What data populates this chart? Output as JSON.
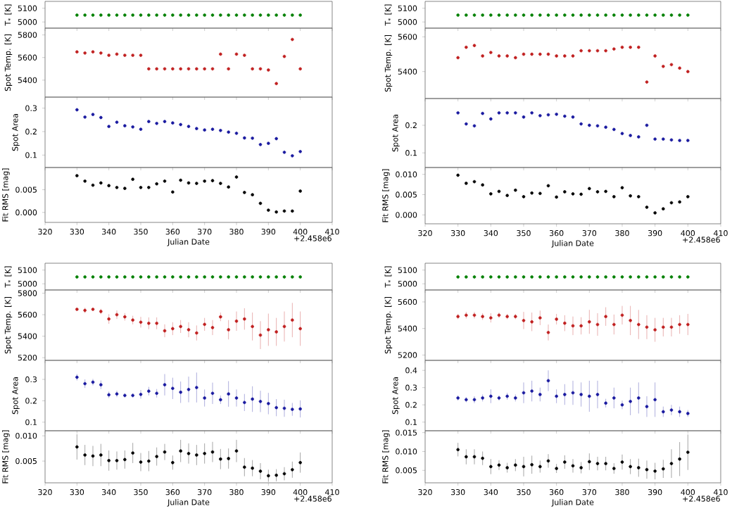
{
  "chart_data": [
    {
      "type": "scatter",
      "ylabel": "T$_{*}$ [K]",
      "color": "#008000",
      "marker": "circle",
      "tick_labels": "y",
      "xlim": [
        320,
        410
      ],
      "xticks": [
        320,
        330,
        340,
        350,
        360,
        370,
        380,
        390,
        400,
        410
      ],
      "ylim": [
        4955,
        5150
      ],
      "yticks": [
        5000,
        5100
      ],
      "x": [
        330,
        332.5,
        335,
        337.5,
        340,
        342.5,
        345,
        347.5,
        350,
        352.5,
        355,
        357.5,
        360,
        362.5,
        365,
        367.5,
        370,
        372.5,
        375,
        377.5,
        380,
        382.5,
        385,
        387.5,
        390,
        392.5,
        395,
        397.5,
        400
      ],
      "values": [
        5050,
        5050,
        5050,
        5050,
        5050,
        5050,
        5050,
        5050,
        5050,
        5050,
        5050,
        5050,
        5050,
        5050,
        5050,
        5050,
        5050,
        5050,
        5050,
        5050,
        5050,
        5050,
        5050,
        5050,
        5050,
        5050,
        5050,
        5050,
        5050
      ]
    },
    {
      "type": "scatter",
      "ylabel": "Spot Temp. [K]",
      "color": "#c02020",
      "marker": "circle",
      "tick_labels": "y",
      "xlim": [
        320,
        410
      ],
      "xticks": [
        320,
        330,
        340,
        350,
        360,
        370,
        380,
        390,
        400,
        410
      ],
      "ylim": [
        5250,
        5860
      ],
      "yticks": [
        5400,
        5600,
        5800
      ],
      "x": [
        330,
        332.5,
        335,
        337.5,
        340,
        342.5,
        345,
        347.5,
        350,
        352.5,
        355,
        357.5,
        360,
        362.5,
        365,
        367.5,
        370,
        372.5,
        375,
        377.5,
        380,
        382.5,
        385,
        387.5,
        390,
        392.5,
        395,
        397.5,
        400
      ],
      "values": [
        5650,
        5640,
        5650,
        5640,
        5620,
        5630,
        5620,
        5620,
        5620,
        5500,
        5500,
        5500,
        5500,
        5500,
        5500,
        5500,
        5500,
        5500,
        5630,
        5500,
        5630,
        5620,
        5500,
        5500,
        5490,
        5370,
        5610,
        5760,
        5500
      ]
    },
    {
      "type": "scatter",
      "ylabel": "Spot Area",
      "color": "#1a1aa0",
      "marker": "circle",
      "tick_labels": "y",
      "xlim": [
        320,
        410
      ],
      "xticks": [
        320,
        330,
        340,
        350,
        360,
        370,
        380,
        390,
        400,
        410
      ],
      "ylim": [
        0.047,
        0.347
      ],
      "yticks": [
        0.1,
        0.2,
        0.3
      ],
      "x": [
        330,
        332.5,
        335,
        337.5,
        340,
        342.5,
        345,
        347.5,
        350,
        352.5,
        355,
        357.5,
        360,
        362.5,
        365,
        367.5,
        370,
        372.5,
        375,
        377.5,
        380,
        382.5,
        385,
        387.5,
        390,
        392.5,
        395,
        397.5,
        400
      ],
      "values": [
        0.293,
        0.262,
        0.273,
        0.26,
        0.222,
        0.24,
        0.225,
        0.22,
        0.21,
        0.243,
        0.235,
        0.243,
        0.237,
        0.23,
        0.222,
        0.213,
        0.207,
        0.21,
        0.205,
        0.198,
        0.193,
        0.173,
        0.172,
        0.145,
        0.15,
        0.17,
        0.112,
        0.097,
        0.115
      ]
    },
    {
      "type": "scatter",
      "ylabel": "Fit RMS [mag]",
      "xlabel": "Julian Date",
      "annotations": [
        "+2.458e6"
      ],
      "color": "#000000",
      "marker": "circle",
      "xlim": [
        320,
        410
      ],
      "xticks": [
        320,
        330,
        340,
        350,
        360,
        370,
        380,
        390,
        400,
        410
      ],
      "ylim": [
        -0.0022,
        0.0099
      ],
      "yticks": [
        {
          "value": 0,
          "label": "0.000"
        },
        {
          "value": 0.005,
          "label": "0.005"
        }
      ],
      "x": [
        330,
        332.5,
        335,
        337.5,
        340,
        342.5,
        345,
        347.5,
        350,
        352.5,
        355,
        357.5,
        360,
        362.5,
        365,
        367.5,
        370,
        372.5,
        375,
        377.5,
        380,
        382.5,
        385,
        387.5,
        390,
        392.5,
        395,
        397.5,
        400
      ],
      "values": [
        0.0081,
        0.0069,
        0.006,
        0.0065,
        0.0059,
        0.0055,
        0.0053,
        0.0073,
        0.0055,
        0.0055,
        0.0063,
        0.0069,
        0.0045,
        0.0071,
        0.0065,
        0.0064,
        0.0069,
        0.007,
        0.0064,
        0.0056,
        0.0078,
        0.0044,
        0.0039,
        0.002,
        0.0005,
        0.0001,
        0.0003,
        0.0003,
        0.0047
      ]
    },
    {
      "type": "scatter",
      "ylabel": "T$_{*}$ [K]",
      "color": "#008000",
      "marker": "circle",
      "tick_labels": "y",
      "xlim": [
        320,
        410
      ],
      "xticks": [
        320,
        330,
        340,
        350,
        360,
        370,
        380,
        390,
        400,
        410
      ],
      "ylim": [
        4955,
        5150
      ],
      "yticks": [
        5000,
        5100
      ],
      "x": [
        330,
        332.5,
        335,
        337.5,
        340,
        342.5,
        345,
        347.5,
        350,
        352.5,
        355,
        357.5,
        360,
        362.5,
        365,
        367.5,
        370,
        372.5,
        375,
        377.5,
        380,
        382.5,
        385,
        387.5,
        390,
        392.5,
        395,
        397.5,
        400
      ],
      "values": [
        5050,
        5050,
        5050,
        5050,
        5050,
        5050,
        5050,
        5050,
        5050,
        5050,
        5050,
        5050,
        5050,
        5050,
        5050,
        5050,
        5050,
        5050,
        5050,
        5050,
        5050,
        5050,
        5050,
        5050,
        5050,
        5050,
        5050,
        5050,
        5050
      ]
    },
    {
      "type": "scatter",
      "ylabel": "Spot Temp. [K]",
      "color": "#c02020",
      "marker": "circle",
      "tick_labels": "y",
      "xlim": [
        320,
        410
      ],
      "xticks": [
        320,
        330,
        340,
        350,
        360,
        370,
        380,
        390,
        400,
        410
      ],
      "ylim": [
        5245,
        5650
      ],
      "yticks": [
        5400,
        5600
      ],
      "x": [
        330,
        332.5,
        335,
        337.5,
        340,
        342.5,
        345,
        347.5,
        350,
        352.5,
        355,
        357.5,
        360,
        362.5,
        365,
        367.5,
        370,
        372.5,
        375,
        377.5,
        380,
        382.5,
        385,
        387.5,
        390,
        392.5,
        395,
        397.5,
        400
      ],
      "values": [
        5480,
        5540,
        5550,
        5490,
        5510,
        5490,
        5490,
        5480,
        5500,
        5500,
        5500,
        5500,
        5490,
        5490,
        5490,
        5520,
        5520,
        5520,
        5520,
        5530,
        5540,
        5540,
        5540,
        5340,
        5490,
        5430,
        5440,
        5420,
        5400
      ]
    },
    {
      "type": "scatter",
      "ylabel": "Spot Area",
      "color": "#1a1aa0",
      "marker": "circle",
      "tick_labels": "y",
      "xlim": [
        320,
        410
      ],
      "xticks": [
        320,
        330,
        340,
        350,
        360,
        370,
        380,
        390,
        400,
        410
      ],
      "ylim": [
        0.047,
        0.297
      ],
      "yticks": [
        0.1,
        0.2
      ],
      "x": [
        330,
        332.5,
        335,
        337.5,
        340,
        342.5,
        345,
        347.5,
        350,
        352.5,
        355,
        357.5,
        360,
        362.5,
        365,
        367.5,
        370,
        372.5,
        375,
        377.5,
        380,
        382.5,
        385,
        387.5,
        390,
        392.5,
        395,
        397.5,
        400
      ],
      "values": [
        0.245,
        0.205,
        0.198,
        0.243,
        0.223,
        0.245,
        0.245,
        0.245,
        0.23,
        0.245,
        0.235,
        0.238,
        0.24,
        0.233,
        0.23,
        0.205,
        0.2,
        0.198,
        0.193,
        0.185,
        0.17,
        0.163,
        0.158,
        0.2,
        0.15,
        0.15,
        0.147,
        0.145,
        0.145
      ]
    },
    {
      "type": "scatter",
      "ylabel": "Fit RMS [mag]",
      "xlabel": "Julian Date",
      "annotations": [
        "+2.458e6"
      ],
      "color": "#000000",
      "marker": "circle",
      "xlim": [
        320,
        410
      ],
      "xticks": [
        320,
        330,
        340,
        350,
        360,
        370,
        380,
        390,
        400,
        410
      ],
      "ylim": [
        -0.0022,
        0.0117
      ],
      "yticks": [
        {
          "value": 0,
          "label": "0.000"
        },
        {
          "value": 0.005,
          "label": "0.005"
        },
        {
          "value": 0.01,
          "label": "0.010"
        }
      ],
      "x": [
        330,
        332.5,
        335,
        337.5,
        340,
        342.5,
        345,
        347.5,
        350,
        352.5,
        355,
        357.5,
        360,
        362.5,
        365,
        367.5,
        370,
        372.5,
        375,
        377.5,
        380,
        382.5,
        385,
        387.5,
        390,
        392.5,
        395,
        397.5,
        400
      ],
      "values": [
        0.0098,
        0.0078,
        0.0082,
        0.0074,
        0.0052,
        0.0058,
        0.0048,
        0.0061,
        0.0045,
        0.0054,
        0.0053,
        0.0072,
        0.0044,
        0.0057,
        0.0052,
        0.0051,
        0.0065,
        0.0057,
        0.0058,
        0.0045,
        0.0067,
        0.0047,
        0.0045,
        0.0019,
        0.0005,
        0.0015,
        0.003,
        0.0032,
        0.0045
      ]
    },
    {
      "type": "scatter",
      "ylabel": "T$_{*}$ [K]",
      "color": "#008000",
      "marker": "circle",
      "tick_labels": "y",
      "xlim": [
        320,
        410
      ],
      "xticks": [
        320,
        330,
        340,
        350,
        360,
        370,
        380,
        390,
        400,
        410
      ],
      "ylim": [
        4955,
        5150
      ],
      "yticks": [
        5000,
        5100
      ],
      "x": [
        330,
        332.5,
        335,
        337.5,
        340,
        342.5,
        345,
        347.5,
        350,
        352.5,
        355,
        357.5,
        360,
        362.5,
        365,
        367.5,
        370,
        372.5,
        375,
        377.5,
        380,
        382.5,
        385,
        387.5,
        390,
        392.5,
        395,
        397.5,
        400
      ],
      "values": [
        5050,
        5050,
        5050,
        5050,
        5050,
        5050,
        5050,
        5050,
        5050,
        5050,
        5050,
        5050,
        5050,
        5050,
        5050,
        5050,
        5050,
        5050,
        5050,
        5050,
        5050,
        5050,
        5050,
        5050,
        5050,
        5050,
        5050,
        5050,
        5050
      ]
    },
    {
      "type": "scatter",
      "ylabel": "Spot Temp. [K]",
      "color": "#c02020",
      "marker": "circle",
      "tick_labels": "y",
      "xlim": [
        320,
        410
      ],
      "xticks": [
        320,
        330,
        340,
        350,
        360,
        370,
        380,
        390,
        400,
        410
      ],
      "ylim": [
        5175,
        5830
      ],
      "yticks": [
        5200,
        5400,
        5600,
        5800
      ],
      "x": [
        330,
        332.5,
        335,
        337.5,
        340,
        342.5,
        345,
        347.5,
        350,
        352.5,
        355,
        357.5,
        360,
        362.5,
        365,
        367.5,
        370,
        372.5,
        375,
        377.5,
        380,
        382.5,
        385,
        387.5,
        390,
        392.5,
        395,
        397.5,
        400
      ],
      "values": [
        5650,
        5640,
        5650,
        5630,
        5560,
        5600,
        5580,
        5550,
        5530,
        5520,
        5520,
        5450,
        5470,
        5490,
        5460,
        5430,
        5510,
        5480,
        5580,
        5460,
        5540,
        5560,
        5490,
        5410,
        5460,
        5440,
        5490,
        5550,
        5470
      ],
      "errors": [
        10,
        25,
        10,
        25,
        45,
        40,
        35,
        40,
        50,
        55,
        55,
        60,
        60,
        60,
        70,
        70,
        60,
        70,
        40,
        90,
        90,
        100,
        130,
        130,
        150,
        130,
        140,
        160,
        160
      ]
    },
    {
      "type": "scatter",
      "ylabel": "Spot Area",
      "color": "#1a1aa0",
      "marker": "circle",
      "tick_labels": "y",
      "xlim": [
        320,
        410
      ],
      "xticks": [
        320,
        330,
        340,
        350,
        360,
        370,
        380,
        390,
        400,
        410
      ],
      "ylim": [
        0.06,
        0.389
      ],
      "yticks": [
        0.1,
        0.2,
        0.3
      ],
      "x": [
        330,
        332.5,
        335,
        337.5,
        340,
        342.5,
        345,
        347.5,
        350,
        352.5,
        355,
        357.5,
        360,
        362.5,
        365,
        367.5,
        370,
        372.5,
        375,
        377.5,
        380,
        382.5,
        385,
        387.5,
        390,
        392.5,
        395,
        397.5,
        400
      ],
      "values": [
        0.31,
        0.28,
        0.287,
        0.275,
        0.228,
        0.232,
        0.225,
        0.225,
        0.23,
        0.245,
        0.235,
        0.275,
        0.258,
        0.24,
        0.253,
        0.262,
        0.213,
        0.235,
        0.205,
        0.232,
        0.213,
        0.192,
        0.208,
        0.197,
        0.187,
        0.168,
        0.165,
        0.16,
        0.162
      ],
      "errors": [
        0.015,
        0.02,
        0.015,
        0.02,
        0.015,
        0.015,
        0.01,
        0.01,
        0.02,
        0.02,
        0.02,
        0.05,
        0.05,
        0.05,
        0.06,
        0.07,
        0.04,
        0.05,
        0.02,
        0.06,
        0.04,
        0.04,
        0.06,
        0.05,
        0.05,
        0.04,
        0.04,
        0.03,
        0.04
      ]
    },
    {
      "type": "scatter",
      "ylabel": "Fit RMS [mag]",
      "xlabel": "Julian Date",
      "annotations": [
        "+2.458e6"
      ],
      "color": "#000000",
      "marker": "circle",
      "xlim": [
        320,
        410
      ],
      "xticks": [
        320,
        330,
        340,
        350,
        360,
        370,
        380,
        390,
        400,
        410
      ],
      "ylim": [
        0.0007,
        0.011
      ],
      "yticks": [
        {
          "value": 0.005,
          "label": "0.005"
        },
        {
          "value": 0.01,
          "label": "0.010"
        }
      ],
      "x": [
        330,
        332.5,
        335,
        337.5,
        340,
        342.5,
        345,
        347.5,
        350,
        352.5,
        355,
        357.5,
        360,
        362.5,
        365,
        367.5,
        370,
        372.5,
        375,
        377.5,
        380,
        382.5,
        385,
        387.5,
        390,
        392.5,
        395,
        397.5,
        400
      ],
      "values": [
        0.0078,
        0.0062,
        0.006,
        0.0062,
        0.0051,
        0.0051,
        0.0053,
        0.0066,
        0.0048,
        0.005,
        0.0059,
        0.0068,
        0.0047,
        0.007,
        0.0065,
        0.0062,
        0.0065,
        0.0068,
        0.0054,
        0.0055,
        0.007,
        0.0038,
        0.0036,
        0.003,
        0.0021,
        0.0022,
        0.0025,
        0.0033,
        0.0047
      ],
      "errors": [
        0.0025,
        0.002,
        0.002,
        0.0022,
        0.002,
        0.0018,
        0.0018,
        0.002,
        0.0018,
        0.002,
        0.0018,
        0.0016,
        0.0014,
        0.0022,
        0.002,
        0.002,
        0.002,
        0.002,
        0.002,
        0.002,
        0.0022,
        0.0018,
        0.0016,
        0.0016,
        0.0012,
        0.0012,
        0.0013,
        0.0016,
        0.002
      ]
    },
    {
      "type": "scatter",
      "ylabel": "T$_{*}$ [K]",
      "color": "#008000",
      "marker": "circle",
      "tick_labels": "y",
      "xlim": [
        320,
        410
      ],
      "xticks": [
        320,
        330,
        340,
        350,
        360,
        370,
        380,
        390,
        400,
        410
      ],
      "ylim": [
        4955,
        5150
      ],
      "yticks": [
        5000,
        5100
      ],
      "x": [
        330,
        332.5,
        335,
        337.5,
        340,
        342.5,
        345,
        347.5,
        350,
        352.5,
        355,
        357.5,
        360,
        362.5,
        365,
        367.5,
        370,
        372.5,
        375,
        377.5,
        380,
        382.5,
        385,
        387.5,
        390,
        392.5,
        395,
        397.5,
        400
      ],
      "values": [
        5050,
        5050,
        5050,
        5050,
        5050,
        5050,
        5050,
        5050,
        5050,
        5050,
        5050,
        5050,
        5050,
        5050,
        5050,
        5050,
        5050,
        5050,
        5050,
        5050,
        5050,
        5050,
        5050,
        5050,
        5050,
        5050,
        5050,
        5050,
        5050
      ]
    },
    {
      "type": "scatter",
      "ylabel": "Spot Temp. [K]",
      "color": "#c02020",
      "marker": "circle",
      "tick_labels": "y",
      "xlim": [
        320,
        410
      ],
      "xticks": [
        320,
        330,
        340,
        350,
        360,
        370,
        380,
        390,
        400,
        410
      ],
      "ylim": [
        5160,
        5690
      ],
      "yticks": [
        5200,
        5400,
        5600
      ],
      "x": [
        330,
        332.5,
        335,
        337.5,
        340,
        342.5,
        345,
        347.5,
        350,
        352.5,
        355,
        357.5,
        360,
        362.5,
        365,
        367.5,
        370,
        372.5,
        375,
        377.5,
        380,
        382.5,
        385,
        387.5,
        390,
        392.5,
        395,
        397.5,
        400
      ],
      "values": [
        5490,
        5500,
        5500,
        5490,
        5480,
        5500,
        5490,
        5490,
        5460,
        5450,
        5480,
        5370,
        5470,
        5440,
        5420,
        5420,
        5450,
        5430,
        5490,
        5430,
        5500,
        5460,
        5430,
        5410,
        5390,
        5410,
        5410,
        5430,
        5430
      ],
      "errors": [
        20,
        25,
        25,
        25,
        35,
        20,
        20,
        20,
        65,
        70,
        55,
        60,
        40,
        60,
        70,
        65,
        90,
        85,
        70,
        75,
        70,
        110,
        110,
        90,
        90,
        70,
        70,
        70,
        80
      ]
    },
    {
      "type": "scatter",
      "ylabel": "Spot Area",
      "color": "#1a1aa0",
      "marker": "circle",
      "tick_labels": "y",
      "xlim": [
        320,
        410
      ],
      "xticks": [
        320,
        330,
        340,
        350,
        360,
        370,
        380,
        390,
        400,
        410
      ],
      "ylim": [
        0.05,
        0.458
      ],
      "yticks": [
        0.1,
        0.2,
        0.3,
        0.4
      ],
      "x": [
        330,
        332.5,
        335,
        337.5,
        340,
        342.5,
        345,
        347.5,
        350,
        352.5,
        355,
        357.5,
        360,
        362.5,
        365,
        367.5,
        370,
        372.5,
        375,
        377.5,
        380,
        382.5,
        385,
        387.5,
        390,
        392.5,
        395,
        397.5,
        400
      ],
      "values": [
        0.24,
        0.23,
        0.23,
        0.24,
        0.25,
        0.24,
        0.25,
        0.24,
        0.27,
        0.28,
        0.26,
        0.34,
        0.25,
        0.26,
        0.27,
        0.26,
        0.25,
        0.26,
        0.21,
        0.24,
        0.2,
        0.22,
        0.24,
        0.19,
        0.23,
        0.16,
        0.17,
        0.16,
        0.15
      ],
      "errors": [
        0.015,
        0.015,
        0.02,
        0.02,
        0.04,
        0.015,
        0.02,
        0.02,
        0.06,
        0.06,
        0.04,
        0.06,
        0.04,
        0.06,
        0.07,
        0.07,
        0.09,
        0.08,
        0.025,
        0.06,
        0.025,
        0.08,
        0.09,
        0.06,
        0.1,
        0.03,
        0.03,
        0.03,
        0.02
      ]
    },
    {
      "type": "scatter",
      "ylabel": "Fit RMS [mag]",
      "xlabel": "Julian Date",
      "annotations": [
        "+2.458e6"
      ],
      "color": "#000000",
      "marker": "circle",
      "xlim": [
        320,
        410
      ],
      "xticks": [
        320,
        330,
        340,
        350,
        360,
        370,
        380,
        390,
        400,
        410
      ],
      "ylim": [
        0.0017,
        0.0155
      ],
      "yticks": [
        {
          "value": 0.005,
          "label": "0.005"
        },
        {
          "value": 0.01,
          "label": "0.010"
        },
        {
          "value": 0.015,
          "label": "0.015"
        }
      ],
      "x": [
        330,
        332.5,
        335,
        337.5,
        340,
        342.5,
        345,
        347.5,
        350,
        352.5,
        355,
        357.5,
        360,
        362.5,
        365,
        367.5,
        370,
        372.5,
        375,
        377.5,
        380,
        382.5,
        385,
        387.5,
        390,
        392.5,
        395,
        397.5,
        400
      ],
      "values": [
        0.0105,
        0.0086,
        0.0086,
        0.0082,
        0.006,
        0.0064,
        0.0057,
        0.0064,
        0.006,
        0.0065,
        0.006,
        0.0075,
        0.0055,
        0.0072,
        0.0062,
        0.0057,
        0.0073,
        0.0068,
        0.0068,
        0.0055,
        0.0072,
        0.006,
        0.0057,
        0.0052,
        0.0048,
        0.0054,
        0.0068,
        0.008,
        0.0098
      ],
      "errors": [
        0.0018,
        0.002,
        0.002,
        0.0018,
        0.002,
        0.0013,
        0.0013,
        0.0016,
        0.0026,
        0.0024,
        0.0016,
        0.0018,
        0.0012,
        0.0018,
        0.0018,
        0.0015,
        0.0022,
        0.0018,
        0.0018,
        0.0014,
        0.002,
        0.002,
        0.0024,
        0.0024,
        0.0022,
        0.0024,
        0.0038,
        0.0045,
        0.0047
      ]
    }
  ]
}
